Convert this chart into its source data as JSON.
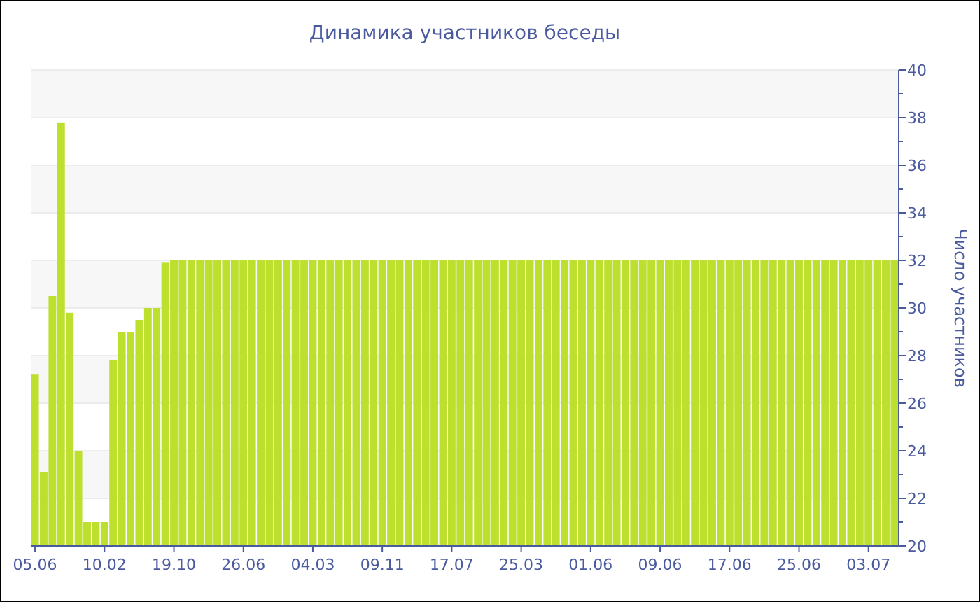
{
  "chart_data": {
    "type": "bar",
    "title": "Динамика участников беседы",
    "ylabel": "Число участников",
    "categories": [
      "05.06",
      null,
      null,
      null,
      null,
      null,
      null,
      null,
      "10.02",
      null,
      null,
      null,
      null,
      null,
      null,
      null,
      "19.10",
      null,
      null,
      null,
      null,
      null,
      null,
      null,
      "26.06",
      null,
      null,
      null,
      null,
      null,
      null,
      null,
      "04.03",
      null,
      null,
      null,
      null,
      null,
      null,
      null,
      "09.11",
      null,
      null,
      null,
      null,
      null,
      null,
      null,
      "17.07",
      null,
      null,
      null,
      null,
      null,
      null,
      null,
      "25.03",
      null,
      null,
      null,
      null,
      null,
      null,
      null,
      "01.06",
      null,
      null,
      null,
      null,
      null,
      null,
      null,
      "09.06",
      null,
      null,
      null,
      null,
      null,
      null,
      null,
      "17.06",
      null,
      null,
      null,
      null,
      null,
      null,
      null,
      "25.06",
      null,
      null,
      null,
      null,
      null,
      null,
      null,
      "03.07",
      null,
      null,
      null
    ],
    "values": [
      27.2,
      23.1,
      30.5,
      37.8,
      29.8,
      24,
      21,
      21,
      21,
      27.8,
      29,
      29,
      29.5,
      30,
      30,
      31.9,
      32,
      32,
      32,
      32,
      32,
      32,
      32,
      32,
      32,
      32,
      32,
      32,
      32,
      32,
      32,
      32,
      32,
      32,
      32,
      32,
      32,
      32,
      32,
      32,
      32,
      32,
      32,
      32,
      32,
      32,
      32,
      32,
      32,
      32,
      32,
      32,
      32,
      32,
      32,
      32,
      32,
      32,
      32,
      32,
      32,
      32,
      32,
      32,
      32,
      32,
      32,
      32,
      32,
      32,
      32,
      32,
      32,
      32,
      32,
      32,
      32,
      32,
      32,
      32,
      32,
      32,
      32,
      32,
      32,
      32,
      32,
      32,
      32,
      32,
      32,
      32,
      32,
      32,
      32,
      32,
      32,
      32,
      32,
      32
    ],
    "color": "#bde02e",
    "ylim": [
      20,
      40
    ],
    "yticks": [
      20,
      22,
      24,
      26,
      28,
      30,
      32,
      34,
      36,
      38,
      40
    ],
    "grid": "y"
  }
}
